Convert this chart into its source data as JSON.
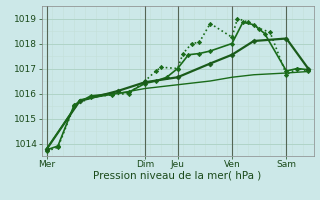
{
  "bg_color": "#cce8e8",
  "grid_color_major": "#b0d4c8",
  "grid_color_minor": "#c4e0d8",
  "line_color": "#1a6b1a",
  "xlabel": "Pression niveau de la mer( hPa )",
  "xlabel_fontsize": 7.5,
  "tick_fontsize": 6.5,
  "ylim": [
    1013.5,
    1019.5
  ],
  "yticks": [
    1014,
    1015,
    1016,
    1017,
    1018,
    1019
  ],
  "xlim": [
    0,
    25
  ],
  "x_day_labels": [
    "Mer",
    "Dim",
    "Jeu",
    "Ven",
    "Sam"
  ],
  "x_day_positions": [
    0.5,
    9.5,
    12.5,
    17.5,
    22.5
  ],
  "x_vline_positions": [
    0.5,
    9.5,
    12.5,
    17.5,
    22.5
  ],
  "series": [
    {
      "x": [
        0.5,
        1.5,
        3.0,
        4.5,
        6.5,
        8.0,
        9.5,
        10.5,
        11.0,
        12.5,
        13.0,
        13.8,
        14.5,
        15.5,
        17.5,
        18.0,
        19.0,
        20.0,
        21.0,
        22.5,
        23.5,
        24.5
      ],
      "y": [
        1013.7,
        1013.85,
        1015.5,
        1015.85,
        1015.95,
        1016.0,
        1016.5,
        1016.9,
        1017.05,
        1017.0,
        1017.6,
        1018.0,
        1018.05,
        1018.8,
        1018.25,
        1019.0,
        1018.85,
        1018.6,
        1018.45,
        1016.75,
        1017.0,
        1016.9
      ],
      "style": "dotted",
      "lw": 1.2,
      "marker": "D",
      "ms": 2.2,
      "color": "#1a6b1a"
    },
    {
      "x": [
        0.5,
        1.5,
        3.0,
        4.5,
        6.5,
        8.0,
        9.5,
        10.5,
        11.5,
        12.5,
        13.5,
        14.5,
        15.5,
        17.5,
        18.5,
        19.5,
        20.5,
        22.5,
        23.5,
        24.5
      ],
      "y": [
        1013.75,
        1013.9,
        1015.55,
        1015.9,
        1016.0,
        1016.05,
        1016.4,
        1016.5,
        1016.65,
        1017.0,
        1017.55,
        1017.6,
        1017.7,
        1018.0,
        1018.85,
        1018.75,
        1018.4,
        1016.9,
        1017.0,
        1016.95
      ],
      "style": "solid",
      "lw": 1.2,
      "marker": "D",
      "ms": 2.2,
      "color": "#1a6b1a"
    },
    {
      "x": [
        0.5,
        3.5,
        7.0,
        9.5,
        12.5,
        15.5,
        17.5,
        19.5,
        22.5,
        24.5
      ],
      "y": [
        1013.8,
        1015.7,
        1016.1,
        1016.45,
        1016.65,
        1017.2,
        1017.55,
        1018.1,
        1018.2,
        1017.0
      ],
      "style": "solid",
      "lw": 1.6,
      "marker": "D",
      "ms": 2.5,
      "color": "#1a5b1a"
    },
    {
      "x": [
        0.5,
        3.5,
        7.0,
        9.5,
        12.5,
        15.5,
        17.5,
        19.5,
        22.5,
        24.5
      ],
      "y": [
        1013.8,
        1015.75,
        1016.0,
        1016.2,
        1016.35,
        1016.5,
        1016.65,
        1016.75,
        1016.82,
        1016.88
      ],
      "style": "solid",
      "lw": 1.0,
      "marker": null,
      "ms": 0,
      "color": "#1a6b1a"
    }
  ]
}
